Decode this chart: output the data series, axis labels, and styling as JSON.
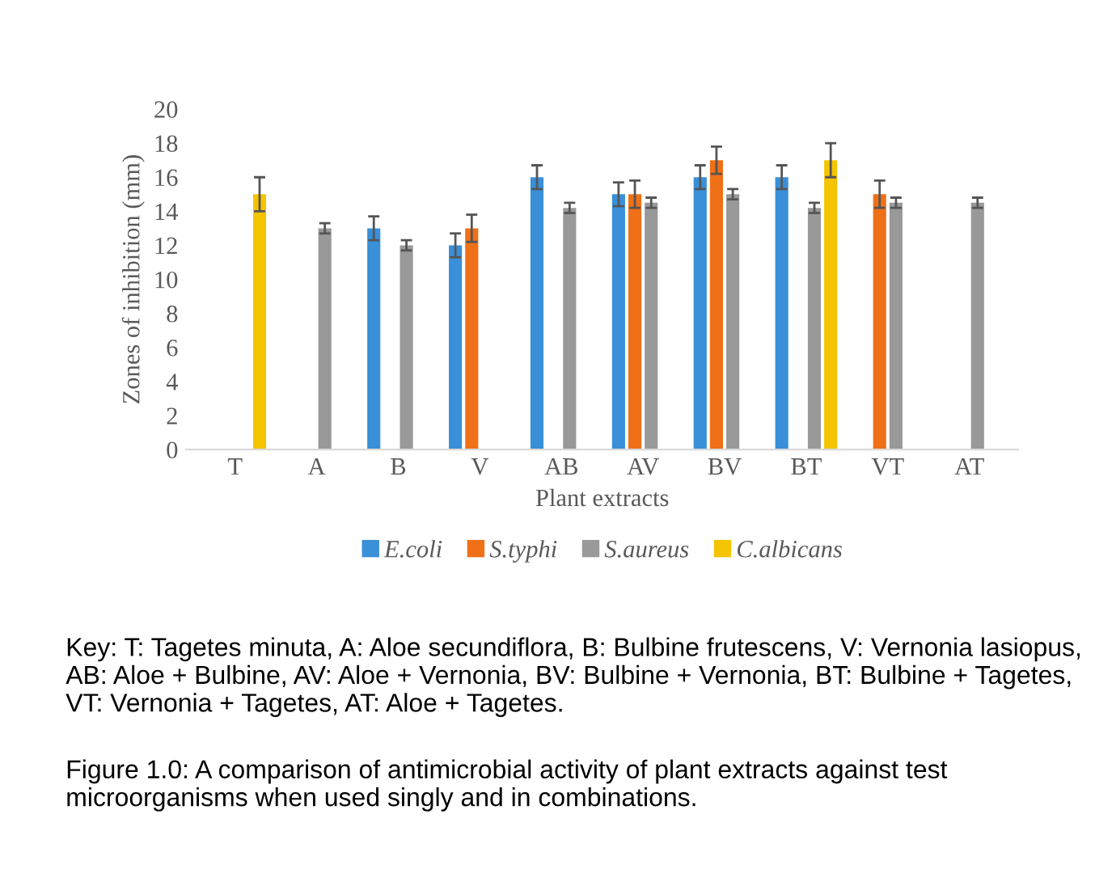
{
  "chart_data": {
    "type": "bar",
    "xlabel": "Plant extracts",
    "ylabel": "Zones of inhibition (mm)",
    "categories": [
      "T",
      "A",
      "B",
      "V",
      "AB",
      "AV",
      "BV",
      "BT",
      "VT",
      "AT"
    ],
    "series": [
      {
        "name": "E.coli",
        "color": "#3a8fd9",
        "values": [
          null,
          null,
          13,
          12,
          16,
          15,
          16,
          16,
          null,
          null
        ],
        "errors": [
          null,
          null,
          0.7,
          0.7,
          0.7,
          0.7,
          0.7,
          0.7,
          null,
          null
        ]
      },
      {
        "name": "S.typhi",
        "color": "#f07018",
        "values": [
          null,
          null,
          null,
          13,
          null,
          15,
          17,
          null,
          15,
          null
        ],
        "errors": [
          null,
          null,
          null,
          0.8,
          null,
          0.8,
          0.8,
          null,
          0.8,
          null
        ]
      },
      {
        "name": "S.aureus",
        "color": "#999999",
        "values": [
          null,
          13,
          12,
          null,
          14.2,
          14.5,
          15,
          14.2,
          14.5,
          14.5
        ],
        "errors": [
          null,
          0.3,
          0.3,
          null,
          0.3,
          0.3,
          0.3,
          0.3,
          0.3,
          0.3
        ]
      },
      {
        "name": "C.albicans",
        "color": "#f5c400",
        "values": [
          15,
          null,
          null,
          null,
          null,
          null,
          null,
          17,
          null,
          null
        ],
        "errors": [
          1,
          null,
          null,
          null,
          null,
          null,
          null,
          1,
          null,
          null
        ]
      }
    ],
    "ylim": [
      0,
      20
    ],
    "yticks": [
      0,
      2,
      4,
      6,
      8,
      10,
      12,
      14,
      16,
      18,
      20
    ],
    "grid": false,
    "legend": "bottom",
    "annotations": [
      "Key: T: Tagetes minuta, A: Aloe secundiflora, B: Bulbine frutescens, V: Vernonia lasiopus, AB: Aloe + Bulbine, AV: Aloe + Vernonia, BV: Bulbine + Vernonia, BT: Bulbine + Tagetes, VT: Vernonia + Tagetes, AT: Aloe + Tagetes.",
      "Figure 1.0: A comparison of antimicrobial activity of plant extracts against test microorganisms when used singly and in combinations."
    ]
  }
}
